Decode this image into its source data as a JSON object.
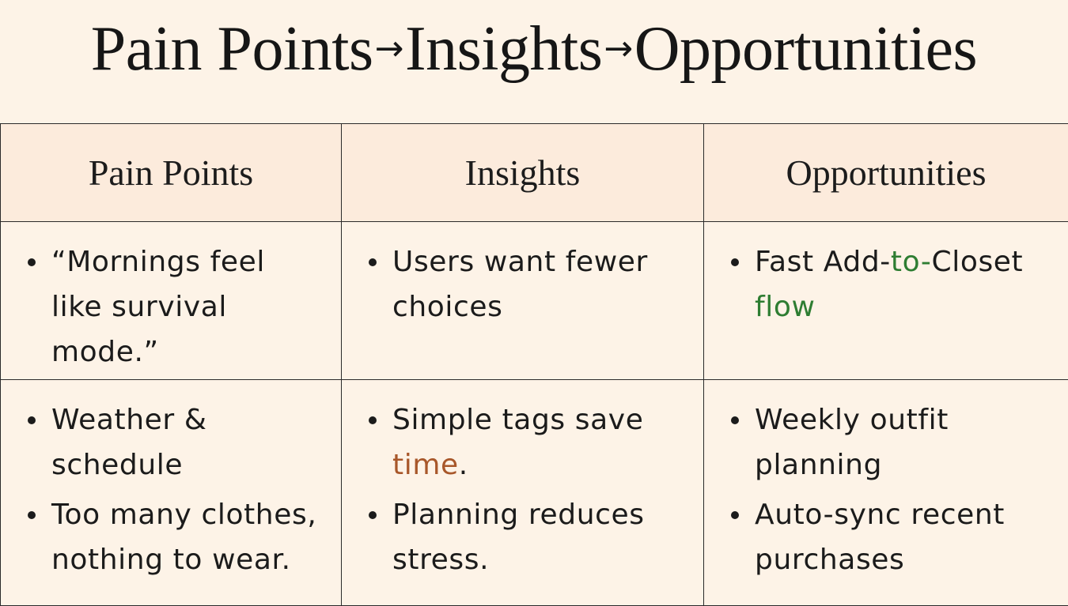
{
  "title": {
    "part1": "Pain Points",
    "arrow1": "→",
    "part2": "Insights",
    "arrow2": "→",
    "part3": "Opportunities"
  },
  "columns": [
    "Pain Points",
    "Insights",
    "Opportunities"
  ],
  "rows": [
    {
      "pain_points": [
        {
          "text": "“Mornings feel like survival mode.”"
        }
      ],
      "insights": [
        {
          "text": "Users want fewer choices"
        }
      ],
      "opportunities": [
        {
          "text_before": "Fast Add-",
          "highlight": "to-",
          "text_after": "Closet ",
          "highlight2": "flow"
        }
      ]
    },
    {
      "pain_points": [
        {
          "text": "Weather & schedule"
        },
        {
          "text": "Too many clothes, nothing to wear."
        }
      ],
      "insights": [
        {
          "text_before": "Simple tags save ",
          "highlight": "time",
          "text_after": "."
        },
        {
          "text": "Planning reduces stress."
        }
      ],
      "opportunities": [
        {
          "text": "Weekly outfit planning"
        },
        {
          "text": "Auto-sync recent purchases"
        }
      ]
    }
  ],
  "colors": {
    "background": "#fdf3e7",
    "header_background": "#fcebdc",
    "highlight_green": "#2e7d32",
    "highlight_rust": "#a8572a"
  }
}
